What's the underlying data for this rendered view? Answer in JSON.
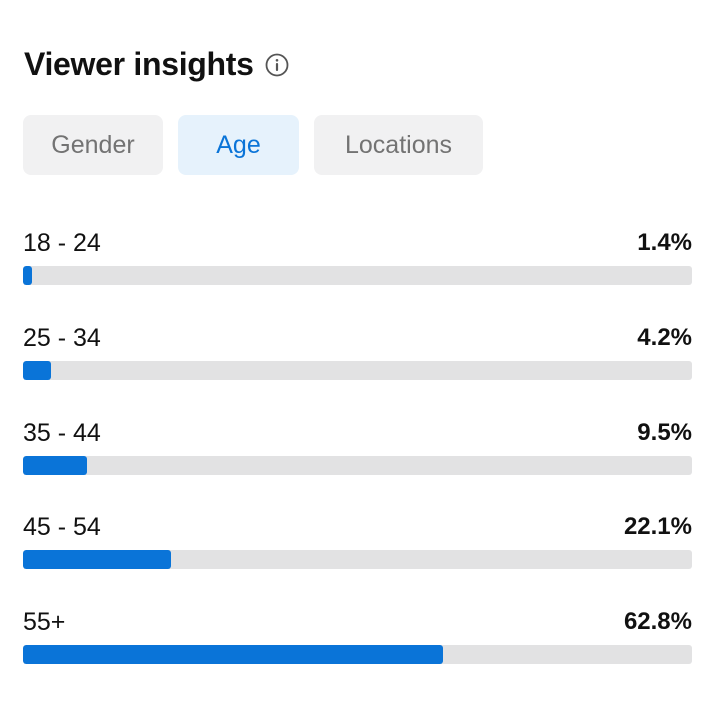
{
  "header": {
    "title": "Viewer insights",
    "info_icon": "info-circle-icon"
  },
  "tabs": [
    {
      "label": "Gender",
      "active": false
    },
    {
      "label": "Age",
      "active": true
    },
    {
      "label": "Locations",
      "active": false
    }
  ],
  "age_groups": [
    {
      "label": "18 - 24",
      "value": "1.4%",
      "fill_fraction": 0.014
    },
    {
      "label": "25 - 34",
      "value": "4.2%",
      "fill_fraction": 0.042
    },
    {
      "label": "35 - 44",
      "value": "9.5%",
      "fill_fraction": 0.095
    },
    {
      "label": "45 - 54",
      "value": "22.1%",
      "fill_fraction": 0.221
    },
    {
      "label": "55+",
      "value": "62.8%",
      "fill_fraction": 0.628
    }
  ],
  "colors": {
    "accent": "#0a74d8",
    "active_tab_bg": "#e6f2fc",
    "inactive_tab_bg": "#f1f1f2",
    "inactive_tab_text": "#737373",
    "track": "#e2e2e3"
  }
}
